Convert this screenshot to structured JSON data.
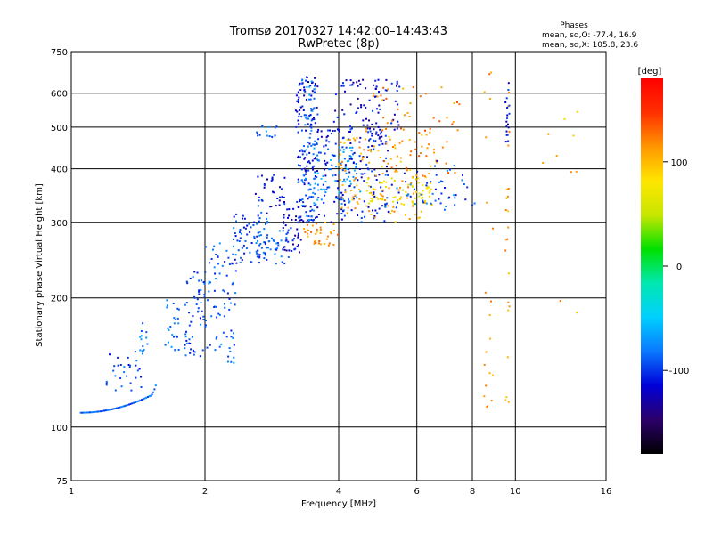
{
  "chart_data": {
    "type": "scatter",
    "title_line1": "Tromsø 20170327 14:42:00–14:43:43",
    "title_line2": "RwPretec (8p)",
    "phases_title": "Phases",
    "phases_o": "mean, sd,O: -77.4, 16.9",
    "phases_x": "mean, sd,X: 105.8, 23.6",
    "xlabel": "Frequency [MHz]",
    "ylabel": "Stationary phase Virtual Height [km]",
    "x_scale": "log",
    "y_scale": "log",
    "xlim": [
      1,
      16
    ],
    "ylim": [
      75,
      750
    ],
    "xticks": [
      1,
      2,
      4,
      6,
      8,
      10,
      16
    ],
    "yticks": [
      75,
      100,
      200,
      300,
      400,
      500,
      600,
      750
    ],
    "grid": true,
    "colorbar": {
      "label": "[deg]",
      "range": [
        -180,
        180
      ],
      "ticks": [
        100,
        0,
        -100
      ],
      "colormap": [
        "#000000",
        "#2c006a",
        "#0000d8",
        "#0a78ff",
        "#00d0ff",
        "#00e8b0",
        "#00e000",
        "#c8e600",
        "#ffe600",
        "#ff9600",
        "#ff3000",
        "#ff0000"
      ]
    },
    "clusters": [
      {
        "x": [
          1.05,
          1.5
        ],
        "y": [
          108,
          118
        ],
        "phase": -90,
        "n": 45,
        "shape": "curve"
      },
      {
        "x": [
          1.5,
          1.55
        ],
        "y": [
          118,
          125
        ],
        "phase": -80,
        "n": 6,
        "shape": "curve"
      },
      {
        "x": [
          1.2,
          1.45
        ],
        "y": [
          118,
          150
        ],
        "phase": -95,
        "n": 30,
        "shape": "band"
      },
      {
        "x": [
          1.42,
          1.5
        ],
        "y": [
          148,
          175
        ],
        "phase": -85,
        "n": 14,
        "shape": "band"
      },
      {
        "x": [
          1.6,
          1.75
        ],
        "y": [
          150,
          200
        ],
        "phase": -85,
        "n": 24,
        "shape": "band"
      },
      {
        "x": [
          1.8,
          2.0
        ],
        "y": [
          145,
          240
        ],
        "phase": -95,
        "n": 55,
        "shape": "band"
      },
      {
        "x": [
          2.0,
          2.35
        ],
        "y": [
          140,
          270
        ],
        "phase": -90,
        "n": 75,
        "shape": "band"
      },
      {
        "x": [
          2.3,
          2.8
        ],
        "y": [
          240,
          320
        ],
        "phase": -95,
        "n": 70,
        "shape": "band"
      },
      {
        "x": [
          2.6,
          3.1
        ],
        "y": [
          240,
          290
        ],
        "phase": -90,
        "n": 45,
        "shape": "band"
      },
      {
        "x": [
          2.6,
          3.05
        ],
        "y": [
          310,
          390
        ],
        "phase": -110,
        "n": 35,
        "shape": "band"
      },
      {
        "x": [
          2.6,
          2.95
        ],
        "y": [
          460,
          505
        ],
        "phase": -85,
        "n": 14,
        "shape": "band"
      },
      {
        "x": [
          3.0,
          3.3
        ],
        "y": [
          255,
          330
        ],
        "phase": -120,
        "n": 40,
        "shape": "band"
      },
      {
        "x": [
          3.2,
          3.6
        ],
        "y": [
          300,
          660
        ],
        "phase": -110,
        "n": 150,
        "shape": "band"
      },
      {
        "x": [
          3.3,
          3.55
        ],
        "y": [
          300,
          650
        ],
        "phase": -80,
        "n": 60,
        "shape": "band"
      },
      {
        "x": [
          3.5,
          4.5
        ],
        "y": [
          330,
          450
        ],
        "phase": -70,
        "n": 80,
        "shape": "band"
      },
      {
        "x": [
          3.6,
          5.2
        ],
        "y": [
          300,
          500
        ],
        "phase": -110,
        "n": 160,
        "shape": "band"
      },
      {
        "x": [
          3.9,
          5.5
        ],
        "y": [
          480,
          650
        ],
        "phase": -115,
        "n": 80,
        "shape": "band"
      },
      {
        "x": [
          3.3,
          4.0
        ],
        "y": [
          265,
          300
        ],
        "phase": 115,
        "n": 35,
        "shape": "band"
      },
      {
        "x": [
          4.0,
          6.5
        ],
        "y": [
          300,
          480
        ],
        "phase": 105,
        "n": 120,
        "shape": "band"
      },
      {
        "x": [
          4.5,
          6.5
        ],
        "y": [
          330,
          380
        ],
        "phase": 75,
        "n": 55,
        "shape": "band"
      },
      {
        "x": [
          4.5,
          7.5
        ],
        "y": [
          380,
          620
        ],
        "phase": 120,
        "n": 70,
        "shape": "band"
      },
      {
        "x": [
          5.0,
          7.5
        ],
        "y": [
          320,
          400
        ],
        "phase": -90,
        "n": 40,
        "shape": "band"
      },
      {
        "x": [
          6.5,
          8.2
        ],
        "y": [
          320,
          420
        ],
        "phase": -95,
        "n": 18,
        "shape": "band"
      },
      {
        "x": [
          8.5,
          8.9
        ],
        "y": [
          110,
          680
        ],
        "phase": 115,
        "n": 20,
        "shape": "band"
      },
      {
        "x": [
          9.5,
          9.7
        ],
        "y": [
          110,
          660
        ],
        "phase": 110,
        "n": 22,
        "shape": "band"
      },
      {
        "x": [
          9.5,
          9.7
        ],
        "y": [
          450,
          650
        ],
        "phase": -110,
        "n": 18,
        "shape": "band"
      },
      {
        "x": [
          11.5,
          14.0
        ],
        "y": [
          180,
          600
        ],
        "phase": 105,
        "n": 10,
        "shape": "band"
      }
    ]
  }
}
